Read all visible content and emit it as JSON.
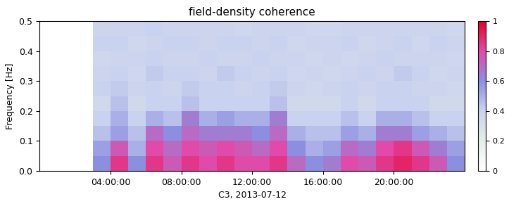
{
  "chart_data": {
    "type": "heatmap",
    "title": "field-density coherence",
    "x_label": "C3, 2013-07-12",
    "y_label": "Frequency [Hz]",
    "x_bins": [
      0,
      1,
      2,
      3,
      4,
      5,
      6,
      7,
      8,
      9,
      10,
      11,
      12,
      13,
      14,
      15,
      16,
      17,
      18,
      19,
      20,
      21,
      22,
      23,
      24
    ],
    "y_bins": [
      0.0,
      0.05,
      0.1,
      0.15,
      0.2,
      0.25,
      0.3,
      0.35,
      0.4,
      0.45,
      0.5
    ],
    "cells": [
      [
        null,
        null,
        null,
        0.6,
        0.85,
        0.6,
        0.85,
        0.75,
        0.85,
        0.8,
        0.85,
        0.8,
        0.8,
        0.85,
        0.7,
        0.6,
        0.65,
        0.8,
        0.75,
        0.85,
        0.9,
        0.85,
        0.75,
        0.6
      ],
      [
        null,
        null,
        null,
        0.55,
        0.75,
        0.5,
        0.8,
        0.7,
        0.8,
        0.75,
        0.8,
        0.75,
        0.7,
        0.8,
        0.6,
        0.5,
        0.55,
        0.7,
        0.65,
        0.8,
        0.85,
        0.75,
        0.65,
        0.55
      ],
      [
        null,
        null,
        null,
        0.45,
        0.55,
        0.45,
        0.7,
        0.6,
        0.7,
        0.65,
        0.65,
        0.65,
        0.6,
        0.7,
        0.5,
        0.45,
        0.45,
        0.55,
        0.5,
        0.65,
        0.65,
        0.55,
        0.5,
        0.45
      ],
      [
        null,
        null,
        null,
        0.4,
        0.5,
        0.4,
        0.5,
        0.45,
        0.65,
        0.5,
        0.55,
        0.5,
        0.5,
        0.65,
        0.4,
        0.4,
        0.4,
        0.45,
        0.4,
        0.5,
        0.5,
        0.45,
        0.4,
        0.4
      ],
      [
        null,
        null,
        null,
        0.35,
        0.45,
        0.35,
        0.4,
        0.4,
        0.45,
        0.4,
        0.4,
        0.4,
        0.4,
        0.45,
        0.35,
        0.35,
        0.35,
        0.4,
        0.35,
        0.4,
        0.4,
        0.4,
        0.35,
        0.35
      ],
      [
        null,
        null,
        null,
        0.4,
        0.42,
        0.38,
        0.4,
        0.38,
        0.42,
        0.4,
        0.4,
        0.38,
        0.4,
        0.42,
        0.38,
        0.36,
        0.38,
        0.4,
        0.38,
        0.4,
        0.4,
        0.38,
        0.38,
        0.36
      ],
      [
        null,
        null,
        null,
        0.38,
        0.4,
        0.36,
        0.42,
        0.4,
        0.4,
        0.38,
        0.42,
        0.4,
        0.38,
        0.4,
        0.36,
        0.38,
        0.36,
        0.38,
        0.4,
        0.38,
        0.42,
        0.4,
        0.36,
        0.38
      ],
      [
        null,
        null,
        null,
        0.36,
        0.38,
        0.38,
        0.4,
        0.38,
        0.38,
        0.4,
        0.38,
        0.38,
        0.4,
        0.38,
        0.38,
        0.36,
        0.38,
        0.36,
        0.38,
        0.4,
        0.38,
        0.38,
        0.38,
        0.36
      ],
      [
        null,
        null,
        null,
        0.4,
        0.4,
        0.36,
        0.38,
        0.4,
        0.4,
        0.38,
        0.4,
        0.4,
        0.38,
        0.4,
        0.36,
        0.38,
        0.38,
        0.4,
        0.36,
        0.38,
        0.4,
        0.36,
        0.4,
        0.38
      ],
      [
        null,
        null,
        null,
        0.38,
        0.38,
        0.38,
        0.4,
        0.38,
        0.38,
        0.38,
        0.38,
        0.36,
        0.38,
        0.38,
        0.38,
        0.36,
        0.36,
        0.38,
        0.38,
        0.38,
        0.38,
        0.38,
        0.38,
        0.36
      ]
    ],
    "xlim": [
      0,
      24
    ],
    "xticks": [
      {
        "value": 4,
        "label": "04:00:00"
      },
      {
        "value": 8,
        "label": "08:00:00"
      },
      {
        "value": 12,
        "label": "12:00:00"
      },
      {
        "value": 16,
        "label": "16:00:00"
      },
      {
        "value": 20,
        "label": "20:00:00"
      }
    ],
    "ylim": [
      0.0,
      0.5
    ],
    "yticks": [
      0.0,
      0.1,
      0.2,
      0.3,
      0.4,
      0.5
    ],
    "colorbar": {
      "range": [
        0,
        1
      ],
      "ticks": [
        0,
        0.2,
        0.4,
        0.6,
        0.8,
        1
      ]
    }
  }
}
